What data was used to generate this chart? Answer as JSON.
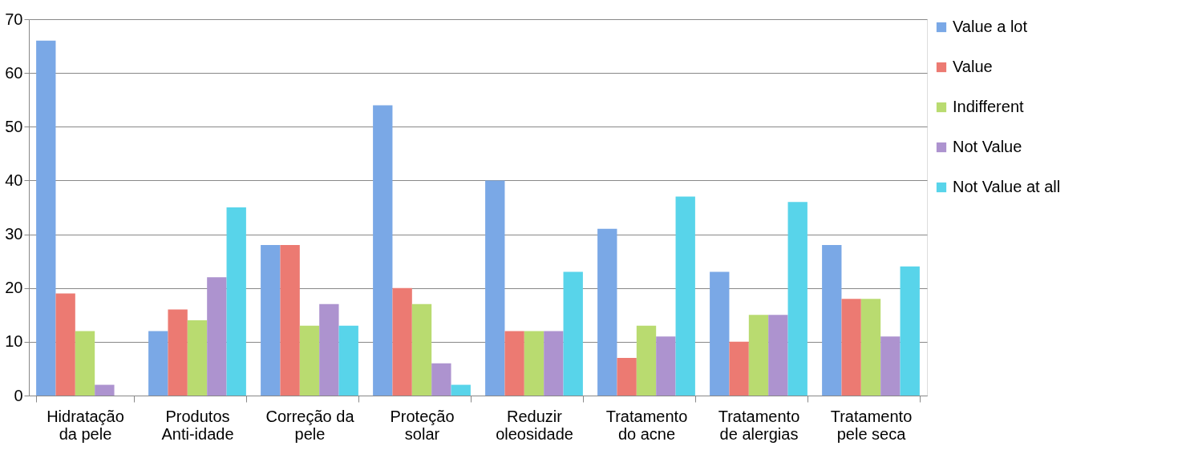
{
  "chart_data": {
    "type": "bar",
    "categories": [
      "Hidratação\nda pele",
      "Produtos\nAnti-idade",
      "Correção da\npele",
      "Proteção\nsolar",
      "Reduzir\noleosidade",
      "Tratamento\ndo acne",
      "Tratamento\nde alergias",
      "Tratamento\npele seca"
    ],
    "series": [
      {
        "name": "Value a lot",
        "color": "#7aa8e6",
        "values": [
          66,
          12,
          28,
          54,
          40,
          31,
          23,
          28
        ]
      },
      {
        "name": "Value",
        "color": "#ec7a72",
        "values": [
          19,
          16,
          28,
          20,
          12,
          7,
          10,
          18
        ]
      },
      {
        "name": "Indifferent",
        "color": "#b9db70",
        "values": [
          12,
          14,
          13,
          17,
          12,
          13,
          15,
          18
        ]
      },
      {
        "name": "Not Value",
        "color": "#ad93cf",
        "values": [
          2,
          22,
          17,
          6,
          12,
          11,
          15,
          11
        ]
      },
      {
        "name": "Not Value at all",
        "color": "#58d4ea",
        "values": [
          0,
          35,
          13,
          2,
          23,
          37,
          36,
          24
        ]
      }
    ],
    "ylim": [
      0,
      70
    ],
    "yticks": [
      0,
      10,
      20,
      30,
      40,
      50,
      60,
      70
    ],
    "grid": "y",
    "legend": "right"
  }
}
